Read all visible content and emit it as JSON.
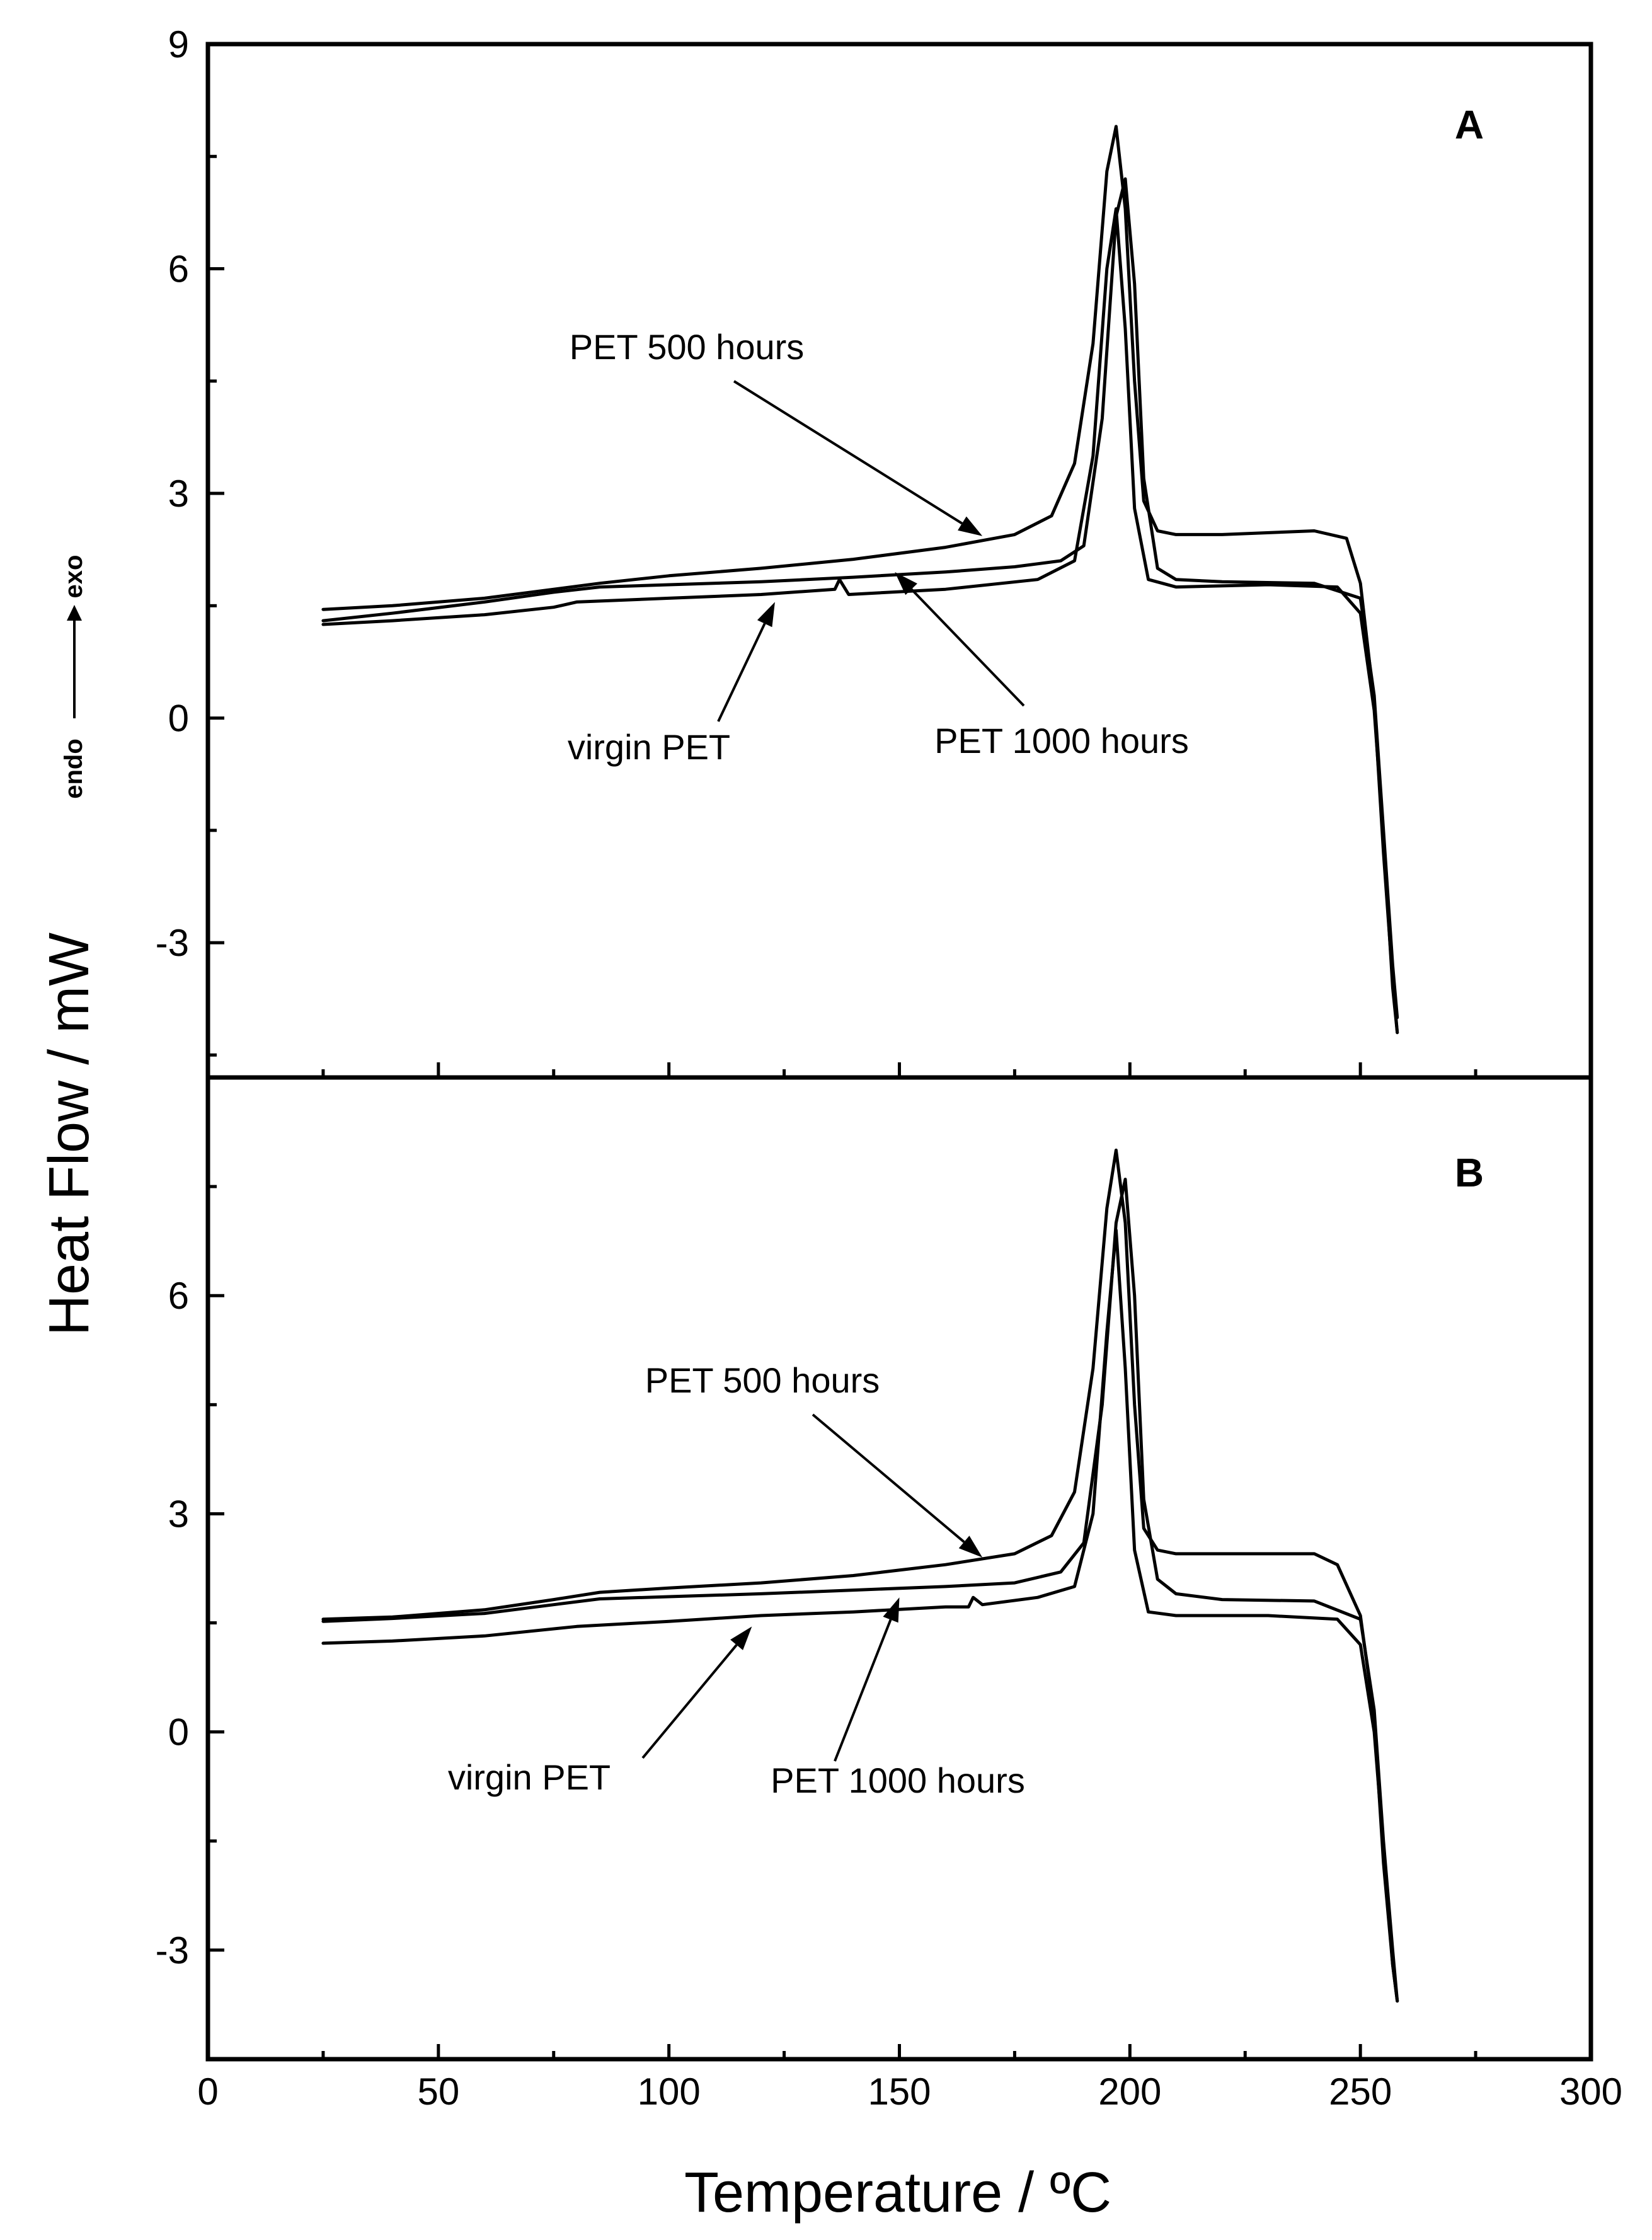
{
  "chart_data": {
    "type": "line",
    "xlabel": "Temperature / ºC",
    "ylabel": "Heat Flow / mW",
    "ylabel_direction": {
      "endo": "endo",
      "exo": "exo"
    },
    "xlim": [
      0,
      300
    ],
    "x_ticks": [
      0,
      50,
      100,
      150,
      200,
      250,
      300
    ],
    "panels": [
      {
        "label": "A",
        "ylim": [
          -4.8,
          9
        ],
        "y_ticks": [
          9,
          6,
          3,
          0,
          -3
        ],
        "series": [
          {
            "name": "PET 500 hours",
            "x": [
              25,
              40,
              60,
              75,
              85,
              100,
              120,
              140,
              160,
              175,
              183,
              188,
              192,
              195,
              197,
              199,
              201,
              203,
              206,
              210,
              220,
              240,
              247,
              250,
              253,
              255,
              257,
              258
            ],
            "y": [
              1.45,
              1.5,
              1.6,
              1.72,
              1.8,
              1.9,
              2.0,
              2.12,
              2.28,
              2.45,
              2.7,
              3.4,
              5.0,
              7.3,
              7.9,
              6.8,
              4.5,
              2.9,
              2.5,
              2.45,
              2.45,
              2.5,
              2.4,
              1.8,
              0.2,
              -1.8,
              -3.5,
              -4.2
            ]
          },
          {
            "name": "PET 1000 hours",
            "x": [
              25,
              40,
              60,
              75,
              85,
              100,
              120,
              140,
              160,
              175,
              185,
              190,
              194,
              197,
              199,
              201,
              203,
              206,
              210,
              220,
              240,
              250,
              253,
              255,
              257,
              258
            ],
            "y": [
              1.3,
              1.4,
              1.55,
              1.68,
              1.75,
              1.78,
              1.82,
              1.88,
              1.95,
              2.02,
              2.1,
              2.3,
              4.0,
              6.7,
              7.2,
              5.8,
              3.2,
              2.0,
              1.85,
              1.82,
              1.8,
              1.6,
              0.3,
              -1.5,
              -3.3,
              -4.0
            ]
          },
          {
            "name": "virgin PET",
            "x": [
              25,
              40,
              60,
              75,
              80,
              100,
              120,
              136,
              137,
              139,
              160,
              180,
              188,
              192,
              195,
              197,
              199,
              201,
              204,
              210,
              230,
              245,
              250,
              253,
              255,
              257,
              258
            ],
            "y": [
              1.25,
              1.3,
              1.38,
              1.48,
              1.55,
              1.6,
              1.65,
              1.72,
              1.85,
              1.65,
              1.72,
              1.85,
              2.1,
              3.5,
              6.0,
              6.8,
              5.2,
              2.8,
              1.85,
              1.75,
              1.78,
              1.75,
              1.4,
              0.1,
              -1.6,
              -3.6,
              -4.2
            ]
          }
        ],
        "annotations": [
          {
            "text": "PET 500 hours",
            "points_to": [
              168,
              2.43
            ]
          },
          {
            "text": "virgin PET",
            "points_to": [
              123,
              1.55
            ]
          },
          {
            "text": "PET 1000 hours",
            "points_to": [
              149,
              1.95
            ]
          }
        ]
      },
      {
        "label": "B",
        "ylim": [
          -4.5,
          9
        ],
        "y_ticks": [
          6,
          3,
          0,
          -3
        ],
        "series": [
          {
            "name": "PET 500 hours",
            "x": [
              25,
              40,
              60,
              75,
              85,
              100,
              120,
              140,
              160,
              175,
              183,
              188,
              192,
              195,
              197,
              199,
              201,
              203,
              206,
              210,
              220,
              240,
              245,
              250,
              253,
              255,
              257,
              258
            ],
            "y": [
              1.55,
              1.58,
              1.68,
              1.82,
              1.92,
              1.98,
              2.05,
              2.15,
              2.3,
              2.45,
              2.7,
              3.3,
              5.0,
              7.2,
              8.0,
              7.0,
              4.5,
              2.8,
              2.5,
              2.45,
              2.45,
              2.45,
              2.3,
              1.6,
              0.2,
              -1.8,
              -3.2,
              -3.7
            ]
          },
          {
            "name": "PET 1000 hours",
            "x": [
              25,
              40,
              60,
              75,
              85,
              100,
              120,
              140,
              160,
              175,
              185,
              190,
              194,
              197,
              199,
              201,
              203,
              206,
              210,
              220,
              240,
              250,
              253,
              255,
              257,
              258
            ],
            "y": [
              1.52,
              1.56,
              1.63,
              1.75,
              1.83,
              1.86,
              1.9,
              1.95,
              2.0,
              2.05,
              2.2,
              2.6,
              4.5,
              7.0,
              7.6,
              6.0,
              3.2,
              2.1,
              1.9,
              1.82,
              1.8,
              1.55,
              0.3,
              -1.5,
              -3.0,
              -3.7
            ]
          },
          {
            "name": "virgin PET",
            "x": [
              25,
              40,
              60,
              80,
              100,
              120,
              140,
              160,
              165,
              166,
              168,
              180,
              188,
              192,
              195,
              197,
              199,
              201,
              204,
              210,
              230,
              245,
              250,
              253,
              255,
              257,
              258
            ],
            "y": [
              1.22,
              1.25,
              1.32,
              1.45,
              1.52,
              1.6,
              1.65,
              1.72,
              1.72,
              1.85,
              1.75,
              1.85,
              2.0,
              3.0,
              5.5,
              6.9,
              5.0,
              2.5,
              1.65,
              1.6,
              1.6,
              1.55,
              1.2,
              0.0,
              -1.6,
              -3.2,
              -3.7
            ]
          }
        ],
        "annotations": [
          {
            "text": "PET 500 hours",
            "points_to": [
              168,
              2.4
            ]
          },
          {
            "text": "virgin PET",
            "points_to": [
              118,
              1.45
            ]
          },
          {
            "text": "PET 1000 hours",
            "points_to": [
              150,
              1.85
            ]
          }
        ]
      }
    ]
  }
}
